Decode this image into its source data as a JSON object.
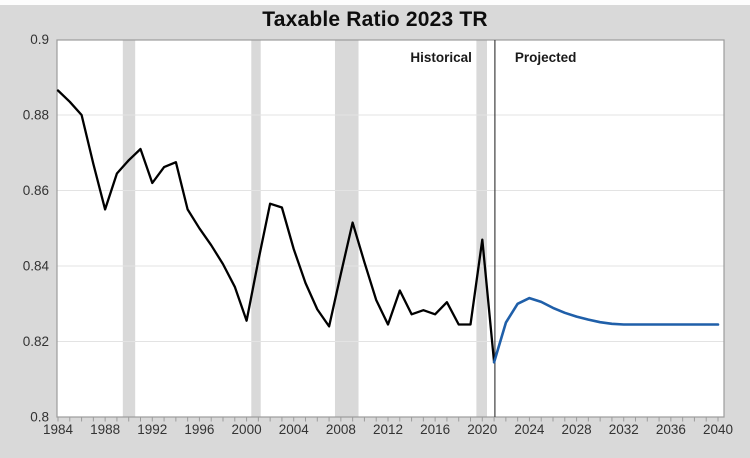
{
  "title": "Taxable Ratio 2023 TR",
  "annotations": {
    "historical_label": "Historical",
    "projected_label": "Projected"
  },
  "colors": {
    "page_background": "#d9d9d9",
    "plot_background": "#ffffff",
    "recession_band": "#d9d9d9",
    "gridline": "#e3e3e3",
    "axis": "#9c9c9c",
    "tick_text": "#333333",
    "annotation_text": "#1a1a1a",
    "separator": "#3f3f3f",
    "historical_line": "#000000",
    "projected_line": "#1f5fa9"
  },
  "chart_data": {
    "type": "line",
    "title": "Taxable Ratio 2023 TR",
    "xlabel": "",
    "ylabel": "",
    "xlim": [
      1983.9,
      2040.5
    ],
    "ylim": [
      0.8,
      0.9
    ],
    "grid": "horizontal",
    "legend_position": "none",
    "x_tick_years": [
      1984,
      1988,
      1992,
      1996,
      2000,
      2004,
      2008,
      2012,
      2016,
      2020,
      2024,
      2028,
      2032,
      2036,
      2040
    ],
    "x_tick_labels": [
      "1984",
      "1988",
      "1992",
      "1996",
      "2000",
      "2004",
      "2008",
      "2012",
      "2016",
      "2020",
      "2024",
      "2028",
      "2032",
      "2036",
      "2040"
    ],
    "minor_ticks_every_year": true,
    "y_ticks": [
      {
        "value": 0.9,
        "label": "0.9"
      },
      {
        "value": 0.88,
        "label": "0.88"
      },
      {
        "value": 0.86,
        "label": "0.86"
      },
      {
        "value": 0.84,
        "label": "0.84"
      },
      {
        "value": 0.82,
        "label": "0.82"
      },
      {
        "value": 0.8,
        "label": "0.8"
      }
    ],
    "recession_bands_years": [
      [
        1989.5,
        1990.55
      ],
      [
        2000.4,
        2001.2
      ],
      [
        2007.5,
        2009.5
      ],
      [
        2019.5,
        2020.4
      ]
    ],
    "separator_year": 2021.07,
    "series": [
      {
        "name": "Historical",
        "color_key": "historical_line",
        "start_year": 1984,
        "values": [
          0.8865,
          0.8835,
          0.88,
          0.867,
          0.855,
          0.8645,
          0.868,
          0.871,
          0.862,
          0.8662,
          0.8675,
          0.855,
          0.85,
          0.8455,
          0.8405,
          0.8345,
          0.8255,
          0.8415,
          0.8565,
          0.8555,
          0.8445,
          0.8355,
          0.8285,
          0.824,
          0.838,
          0.8515,
          0.841,
          0.831,
          0.8245,
          0.8335,
          0.8272,
          0.8283,
          0.8272,
          0.8304,
          0.8245,
          0.8245,
          0.847,
          0.8145
        ]
      },
      {
        "name": "Projected",
        "color_key": "projected_line",
        "start_year": 2021,
        "values": [
          0.8145,
          0.825,
          0.83,
          0.8315,
          0.8305,
          0.8289,
          0.8276,
          0.8266,
          0.8258,
          0.8251,
          0.8247,
          0.8245,
          0.8245,
          0.8245,
          0.8245,
          0.8245,
          0.8245,
          0.8245,
          0.8245,
          0.8245
        ]
      }
    ]
  }
}
